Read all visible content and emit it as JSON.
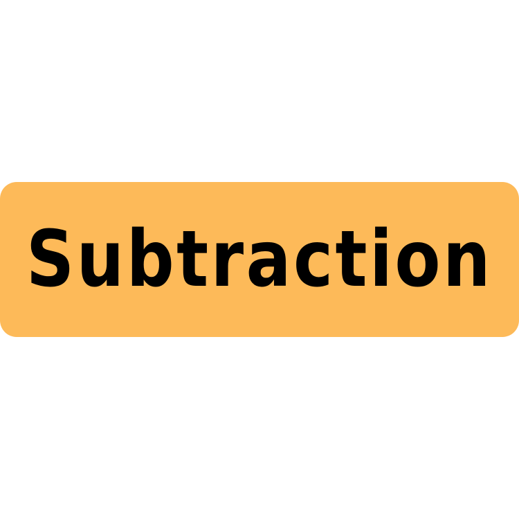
{
  "banner": {
    "text": "Subtraction",
    "background_color": "#FDBA59",
    "text_color": "#000000"
  },
  "page": {
    "background_color": "#FFFFFF"
  }
}
